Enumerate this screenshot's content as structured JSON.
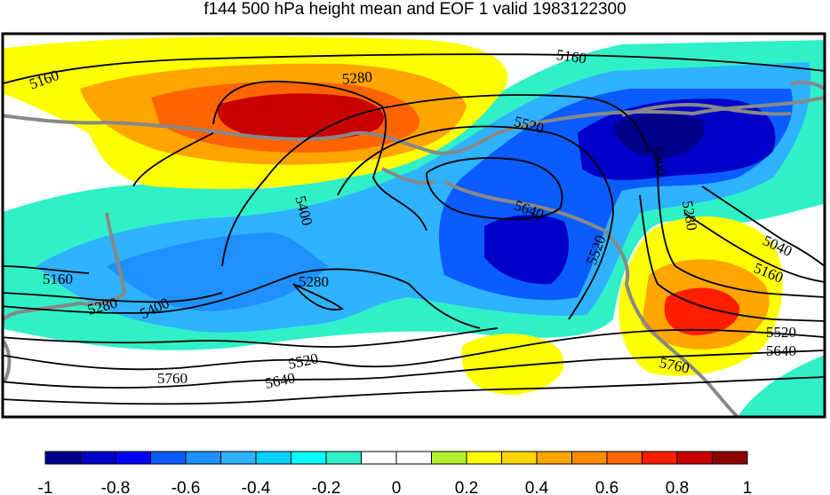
{
  "title": "f144 500 hPa height mean and EOF 1 valid 1983122300",
  "colors": {
    "shading_levels": [
      "#00008b",
      "#0000c8",
      "#0000ff",
      "#0a5cff",
      "#1e90ff",
      "#2fb2ff",
      "#00d0ff",
      "#00ffff",
      "#30f0c8",
      "#ffffff",
      "#ffffff",
      "#b4f032",
      "#ffff00",
      "#ffd700",
      "#ffa500",
      "#ff8c00",
      "#ff6400",
      "#ff1e00",
      "#c80000",
      "#8b0000"
    ],
    "contour": "#000000",
    "coastline": "#888888"
  },
  "contour_labels": [
    {
      "id": "5160-nw",
      "text": "5160"
    },
    {
      "id": "5160-ne",
      "text": "5160"
    },
    {
      "id": "5280-n",
      "text": "5280"
    },
    {
      "id": "5520-n",
      "text": "5520"
    },
    {
      "id": "5400-ne",
      "text": "5400"
    },
    {
      "id": "5400-c",
      "text": "5400"
    },
    {
      "id": "5640-c",
      "text": "5640"
    },
    {
      "id": "5520-c",
      "text": "5520"
    },
    {
      "id": "5280-e",
      "text": "5280"
    },
    {
      "id": "5040-e",
      "text": "5040"
    },
    {
      "id": "5160-e",
      "text": "5160"
    },
    {
      "id": "5520-e",
      "text": "5520"
    },
    {
      "id": "5640-e",
      "text": "5640"
    },
    {
      "id": "5760-e",
      "text": "5760"
    },
    {
      "id": "5160-w",
      "text": "5160"
    },
    {
      "id": "5280-w",
      "text": "5280"
    },
    {
      "id": "5400-w",
      "text": "5400"
    },
    {
      "id": "5280-c",
      "text": "5280"
    },
    {
      "id": "5520-s",
      "text": "5520"
    },
    {
      "id": "5640-s",
      "text": "5640"
    },
    {
      "id": "5760-s",
      "text": "5760"
    }
  ],
  "colorbar": {
    "tick_labels": [
      "-1",
      "-0.8",
      "-0.6",
      "-0.4",
      "-0.2",
      "0",
      "0.2",
      "0.4",
      "0.6",
      "0.8",
      "1"
    ]
  }
}
